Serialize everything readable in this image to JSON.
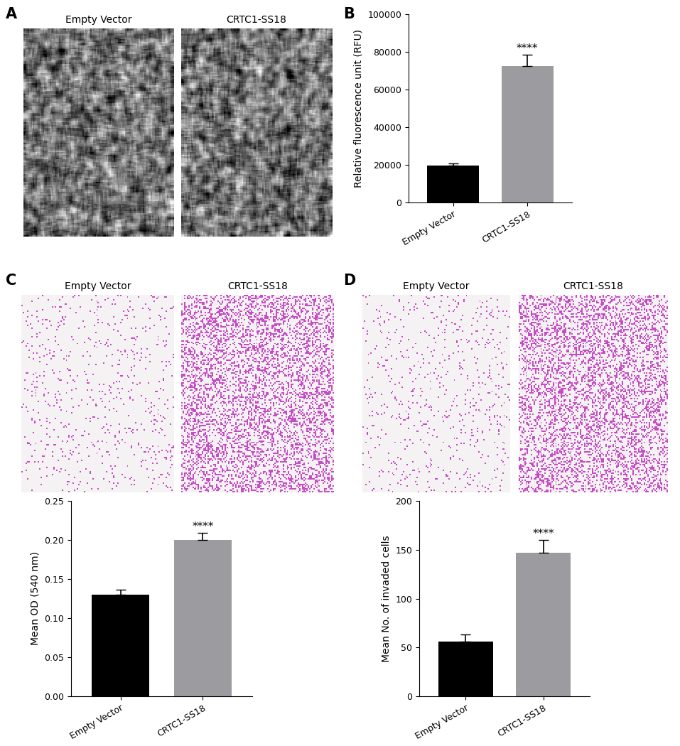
{
  "chart_data": [
    {
      "type": "image",
      "panel": "A",
      "titles": [
        "Empty Vector",
        "CRTC1-SS18"
      ],
      "style": "phase"
    },
    {
      "type": "bar",
      "panel": "B",
      "categories": [
        "Empty Vector",
        "CRTC1-SS18"
      ],
      "values": [
        19500,
        72500
      ],
      "errors": [
        1200,
        6000
      ],
      "colors": [
        "#000000",
        "#9b9ba0"
      ],
      "significance": [
        null,
        "****"
      ],
      "y_label": "Relative fluorescence unit (RFU)",
      "ylim": [
        0,
        100000
      ],
      "yticks": [
        0,
        20000,
        40000,
        60000,
        80000,
        100000
      ]
    },
    {
      "type": "image",
      "panel": "C",
      "titles": [
        "Empty Vector",
        "CRTC1-SS18"
      ],
      "style": "stain"
    },
    {
      "type": "bar",
      "categories": [
        "Empty Vector",
        "CRTC1-SS18"
      ],
      "values": [
        0.13,
        0.2
      ],
      "errors": [
        0.006,
        0.009
      ],
      "colors": [
        "#000000",
        "#9b9ba0"
      ],
      "significance": [
        null,
        "****"
      ],
      "y_label": "Mean OD (540 nm)",
      "ylim": [
        0,
        0.25
      ],
      "yticks": [
        {
          "value": 0,
          "label": "0.00"
        },
        {
          "value": 0.05,
          "label": "0.05"
        },
        {
          "value": 0.1,
          "label": "0.10"
        },
        {
          "value": 0.15,
          "label": "0.15"
        },
        {
          "value": 0.2,
          "label": "0.20"
        },
        {
          "value": 0.25,
          "label": "0.25"
        }
      ]
    },
    {
      "type": "image",
      "panel": "D",
      "titles": [
        "Empty Vector",
        "CRTC1-SS18"
      ],
      "style": "stain"
    },
    {
      "type": "bar",
      "categories": [
        "Empty Vector",
        "CRTC1-SS18"
      ],
      "values": [
        56,
        147
      ],
      "errors": [
        7,
        13
      ],
      "colors": [
        "#000000",
        "#9b9ba0"
      ],
      "significance": [
        null,
        "****"
      ],
      "y_label": "Mean No. of invaded cells",
      "ylim": [
        0,
        200
      ],
      "yticks": [
        0,
        50,
        100,
        150,
        200
      ]
    }
  ]
}
